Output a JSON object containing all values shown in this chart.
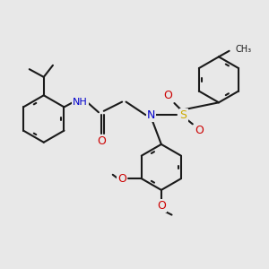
{
  "bg_color": "#e8e8e8",
  "bond_color": "#1a1a1a",
  "bond_width": 1.5,
  "colors": {
    "N": "#0000cc",
    "O": "#cc0000",
    "S": "#ccaa00",
    "H": "#5588aa",
    "C": "#1a1a1a"
  },
  "figsize": [
    3.0,
    3.0
  ],
  "dpi": 100
}
